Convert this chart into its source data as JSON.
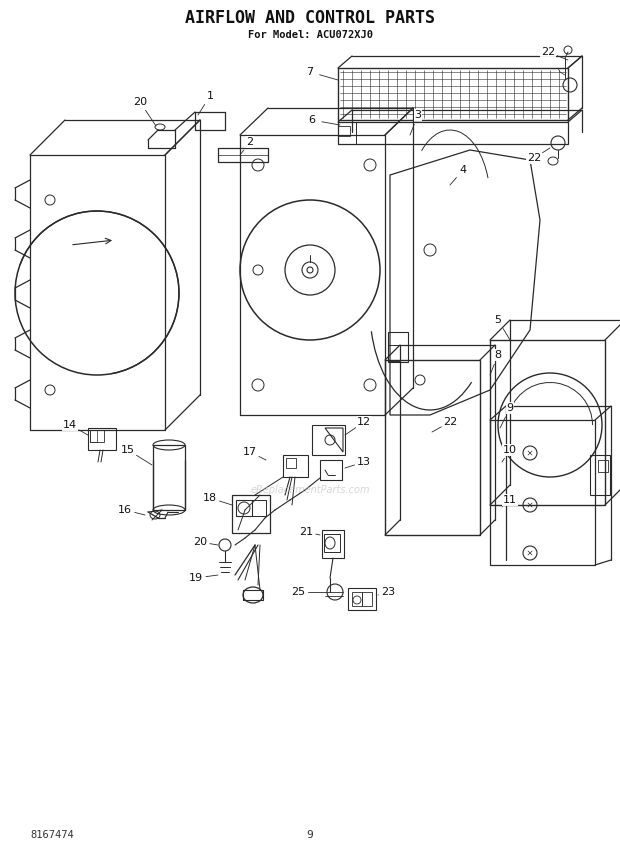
{
  "title": "AIRFLOW AND CONTROL PARTS",
  "subtitle": "For Model: ACU072XJ0",
  "part_number": "8167474",
  "page_number": "9",
  "bg_color": "#ffffff",
  "lc": "#2a2a2a",
  "figsize": [
    6.2,
    8.56
  ],
  "dpi": 100,
  "watermark": "eReplacementParts.com",
  "watermark_color": "#bbbbbb"
}
